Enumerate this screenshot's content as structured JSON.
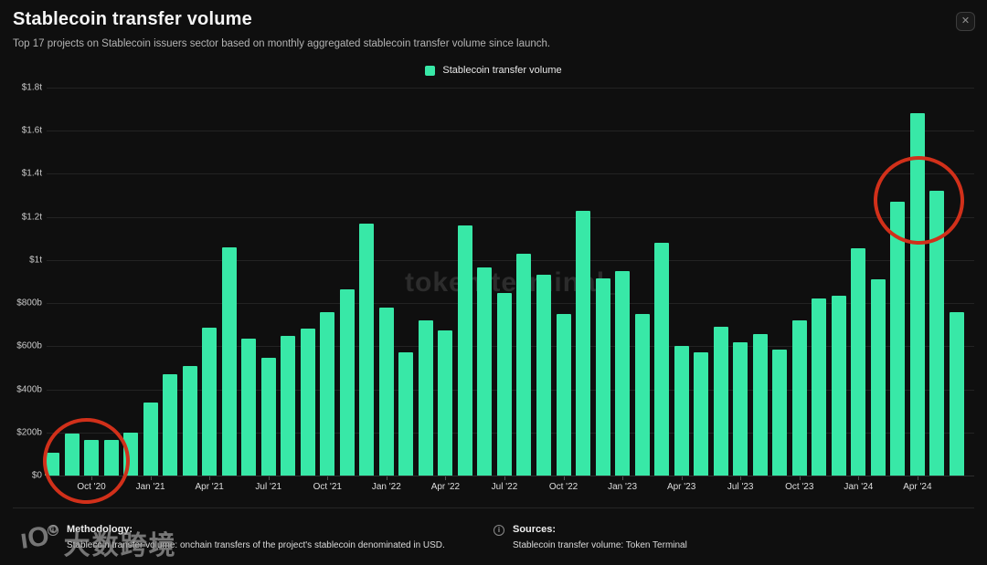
{
  "header": {
    "title": "Stablecoin transfer volume",
    "subtitle": "Top 17 projects on Stablecoin issuers sector based on monthly aggregated stablecoin transfer volume since launch.",
    "close_glyph": "✕"
  },
  "legend": {
    "label": "Stablecoin transfer volume",
    "color": "#38e8a7"
  },
  "chart_data": {
    "type": "bar",
    "title": "Stablecoin transfer volume",
    "unit": "USD billions",
    "bar_color": "#38e8a7",
    "grid": true,
    "legend_position": "top",
    "ylim": [
      0,
      1800
    ],
    "y_ticks": [
      {
        "label": "$1.8t",
        "value": 1800
      },
      {
        "label": "$1.6t",
        "value": 1600
      },
      {
        "label": "$1.4t",
        "value": 1400
      },
      {
        "label": "$1.2t",
        "value": 1200
      },
      {
        "label": "$1t",
        "value": 1000
      },
      {
        "label": "$800b",
        "value": 800
      },
      {
        "label": "$600b",
        "value": 600
      },
      {
        "label": "$400b",
        "value": 400
      },
      {
        "label": "$200b",
        "value": 200
      },
      {
        "label": "$0",
        "value": 0
      }
    ],
    "x_tick_start_index": 2,
    "x_tick_every": 3,
    "categories": [
      "Aug '20",
      "Sep '20",
      "Oct '20",
      "Nov '20",
      "Dec '20",
      "Jan '21",
      "Feb '21",
      "Mar '21",
      "Apr '21",
      "May '21",
      "Jun '21",
      "Jul '21",
      "Aug '21",
      "Sep '21",
      "Oct '21",
      "Nov '21",
      "Dec '21",
      "Jan '22",
      "Feb '22",
      "Mar '22",
      "Apr '22",
      "May '22",
      "Jun '22",
      "Jul '22",
      "Aug '22",
      "Sep '22",
      "Oct '22",
      "Nov '22",
      "Dec '22",
      "Jan '23",
      "Feb '23",
      "Mar '23",
      "Apr '23",
      "May '23",
      "Jun '23",
      "Jul '23",
      "Aug '23",
      "Sep '23",
      "Oct '23",
      "Nov '23",
      "Dec '23",
      "Jan '24",
      "Feb '24",
      "Mar '24",
      "Apr '24",
      "May '24",
      "Jun '24"
    ],
    "values": [
      105,
      195,
      165,
      165,
      200,
      340,
      470,
      510,
      685,
      1060,
      635,
      545,
      650,
      680,
      760,
      865,
      1170,
      780,
      570,
      720,
      675,
      1160,
      965,
      845,
      1030,
      930,
      750,
      1230,
      915,
      950,
      750,
      1080,
      600,
      570,
      690,
      620,
      655,
      585,
      720,
      820,
      835,
      1055,
      910,
      1270,
      1680,
      1320,
      760
    ],
    "annotations": [
      {
        "type": "circle",
        "color": "#d1301a",
        "around": "Aug '20 – Nov '20 bars"
      },
      {
        "type": "circle",
        "color": "#d1301a",
        "around": "Mar '24 – May '24 bar tops"
      }
    ]
  },
  "watermarks": {
    "center": "token terminal_",
    "corner_logo": "ıO°",
    "corner_text": "大数跨境"
  },
  "footer": {
    "info_glyph": "i",
    "methodology_title": "Methodology:",
    "methodology_text": "Stablecoin transfer volume: onchain transfers of the project's stablecoin denominated in USD.",
    "sources_title": "Sources:",
    "sources_text": "Stablecoin transfer volume: Token Terminal"
  }
}
